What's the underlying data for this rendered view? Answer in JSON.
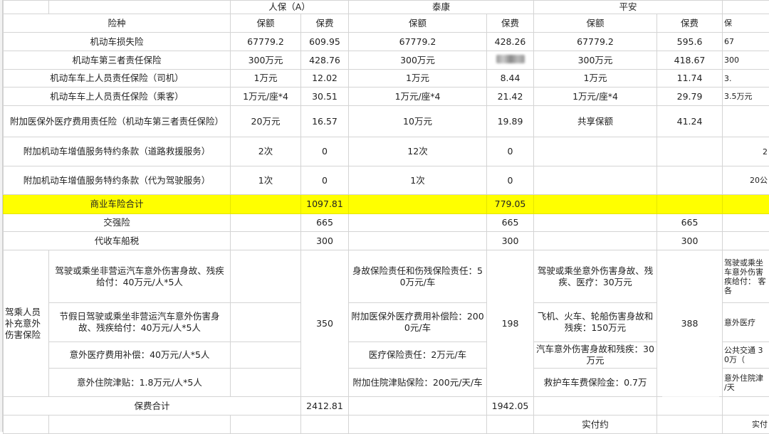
{
  "companies": {
    "renbao": "人保（A）",
    "taikang": "泰康",
    "pingan": "平安"
  },
  "col_headers": {
    "item": "险种",
    "amount": "保额",
    "premium": "保费",
    "partial": "保"
  },
  "rows": [
    {
      "label": "机动车损失险",
      "rb_amt": "67779.2",
      "rb_prem": "609.95",
      "tk_amt": "67779.2",
      "tk_prem": "428.26",
      "pa_amt": "67779.2",
      "pa_prem": "595.6",
      "extra": "67"
    },
    {
      "label": "机动车第三者责任保险",
      "rb_amt": "300万元",
      "rb_prem": "428.76",
      "tk_amt": "300万元",
      "tk_prem": "",
      "pa_amt": "300万元",
      "pa_prem": "418.67",
      "extra": "300"
    },
    {
      "label": "机动车车上人员责任保险（司机）",
      "rb_amt": "1万元",
      "rb_prem": "12.02",
      "tk_amt": "1万元",
      "tk_prem": "8.44",
      "pa_amt": "1万元",
      "pa_prem": "11.74",
      "extra": "3."
    },
    {
      "label": "机动车车上人员责任保险（乘客）",
      "rb_amt": "1万元/座*4",
      "rb_prem": "30.51",
      "tk_amt": "1万元/座*4",
      "tk_prem": "21.42",
      "pa_amt": "1万元/座*4",
      "pa_prem": "29.79",
      "extra": "3.5万元"
    },
    {
      "label": "附加医保外医疗费用责任险（机动车第三者责任保险）",
      "rb_amt": "20万元",
      "rb_prem": "16.57",
      "tk_amt": "10万元",
      "tk_prem": "19.89",
      "pa_amt": "共享保额",
      "pa_prem": "41.24",
      "extra": ""
    },
    {
      "label": "附加机动车增值服务特约条款（道路救援服务）",
      "rb_amt": "2次",
      "rb_prem": "0",
      "tk_amt": "12次",
      "tk_prem": "0",
      "pa_amt": "",
      "pa_prem": "",
      "extra": "2"
    },
    {
      "label": "附加机动车增值服务特约条款（代为驾驶服务）",
      "rb_amt": "1次",
      "rb_prem": "0",
      "tk_amt": "1次",
      "tk_prem": "0",
      "pa_amt": "",
      "pa_prem": "",
      "extra": "20公"
    }
  ],
  "commercial_total": {
    "label": "商业车险合计",
    "renbao": "1097.81",
    "taikang": "779.05",
    "highlight_color": "#ffff00"
  },
  "compulsory": {
    "label": "交强险",
    "renbao": "665",
    "taikang": "665",
    "pingan": "665"
  },
  "vessel_tax": {
    "label": "代收车船税",
    "renbao": "300",
    "taikang": "300",
    "pingan": "300"
  },
  "accident": {
    "label": "驾乘人员补充意外伤害保险",
    "renbao_items": [
      "驾驶或乘坐非营运汽车意外伤害身故、残疾给付：40万元/人*5人",
      "节假日驾驶或乘坐非营运汽车意外伤害身故、残疾给付：40万元/人*5人",
      "意外医疗费用补偿：40万元/人*5人",
      "意外住院津贴：1.8万元/人*5人"
    ],
    "renbao_premium": "350",
    "taikang_items": [
      "身故保险责任和伤残保险责任：50万元/车",
      "附加医保外医疗费用补偿险：2000元/车",
      "医疗保险责任：2万元/车",
      "附加住院津贴保险：200元/天/车"
    ],
    "taikang_premium": "198",
    "pingan_items": [
      "驾驶或乘坐意外伤害身故、残疾、医疗：30万元",
      "飞机、火车、轮船伤害身故和残疾：150万元",
      "汽车意外伤害身故和残疾：30万元",
      "救护车车费保险金：0.7万"
    ],
    "pingan_premium": "388",
    "extra_items": [
      "驾驶或乘坐 车意外伤害 疾给付： 客各",
      "意外医疗",
      "公共交通 30万（",
      "意外住院津 /天"
    ]
  },
  "grand_total": {
    "label": "保费合计",
    "renbao": "2412.81",
    "taikang": "1942.05"
  },
  "paid": {
    "pingan": "实付约",
    "extra": "实付"
  }
}
